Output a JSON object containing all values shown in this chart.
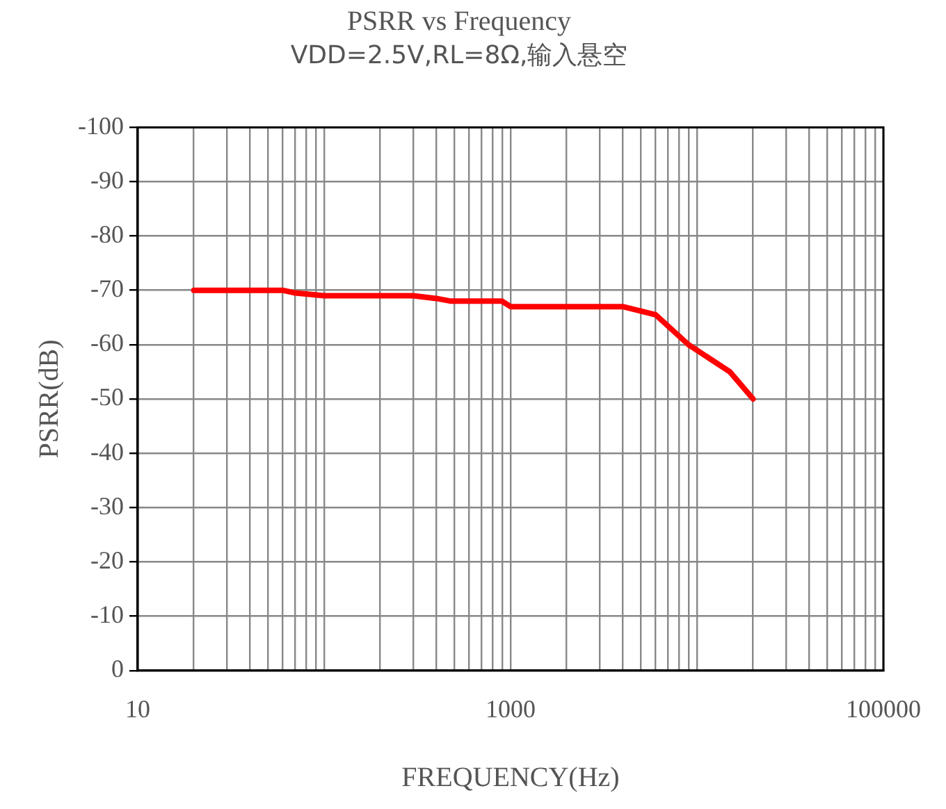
{
  "chart_data": {
    "type": "line",
    "title": "PSRR vs Frequency",
    "subtitle": "VDD=2.5V,RL=8Ω,输入悬空",
    "xlabel": "FREQUENCY(Hz)",
    "ylabel": "PSRR(dB)",
    "log": "x",
    "grid": true,
    "legend": false,
    "marker": "none",
    "line_style": "solid",
    "xlim": [
      10,
      100000
    ],
    "ylim": [
      0,
      -100
    ],
    "xticks": [
      10,
      {
        "value": 20,
        "label": null
      },
      {
        "value": 30,
        "label": null
      },
      {
        "value": 40,
        "label": null
      },
      {
        "value": 50,
        "label": null
      },
      {
        "value": 60,
        "label": null
      },
      {
        "value": 70,
        "label": null
      },
      {
        "value": 80,
        "label": null
      },
      {
        "value": 90,
        "label": null
      },
      {
        "value": 100,
        "label": null
      },
      {
        "value": 200,
        "label": null
      },
      {
        "value": 300,
        "label": null
      },
      {
        "value": 400,
        "label": null
      },
      {
        "value": 500,
        "label": null
      },
      {
        "value": 600,
        "label": null
      },
      {
        "value": 700,
        "label": null
      },
      {
        "value": 800,
        "label": null
      },
      {
        "value": 900,
        "label": null
      },
      1000,
      {
        "value": 2000,
        "label": null
      },
      {
        "value": 3000,
        "label": null
      },
      {
        "value": 4000,
        "label": null
      },
      {
        "value": 5000,
        "label": null
      },
      {
        "value": 6000,
        "label": null
      },
      {
        "value": 7000,
        "label": null
      },
      {
        "value": 8000,
        "label": null
      },
      {
        "value": 9000,
        "label": null
      },
      {
        "value": 10000,
        "label": null
      },
      {
        "value": 20000,
        "label": null
      },
      {
        "value": 30000,
        "label": null
      },
      {
        "value": 40000,
        "label": null
      },
      {
        "value": 50000,
        "label": null
      },
      {
        "value": 60000,
        "label": null
      },
      {
        "value": 70000,
        "label": null
      },
      {
        "value": 80000,
        "label": null
      },
      {
        "value": 90000,
        "label": null
      },
      100000
    ],
    "yticks": [
      -100,
      -90,
      -80,
      -70,
      -60,
      -50,
      -40,
      -30,
      -20,
      -10,
      0
    ],
    "x": [
      20,
      50,
      60,
      70,
      100,
      300,
      400,
      480,
      900,
      1000,
      4000,
      6000,
      9000,
      15000,
      20000
    ],
    "series": [
      {
        "color": "#ff0000",
        "values": [
          -70,
          -70,
          -70,
          -69.5,
          -69,
          -69,
          -68.5,
          -68,
          -68,
          -67,
          -67,
          -65.5,
          -60,
          -55,
          -50
        ]
      }
    ]
  }
}
